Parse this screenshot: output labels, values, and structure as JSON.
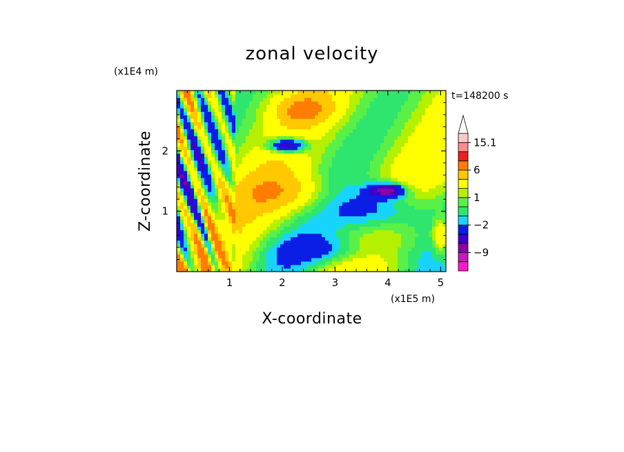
{
  "chart_data": {
    "type": "heatmap",
    "title": "zonal velocity",
    "xlabel": "X-coordinate",
    "ylabel": "Z-coordinate",
    "x_unit": "(x1E5 m)",
    "y_unit": "(x1E4 m)",
    "time_label": "t=148200 s",
    "xlim": [
      0,
      5.1
    ],
    "ylim": [
      0,
      3.0
    ],
    "x_ticks": [
      1,
      2,
      3,
      4,
      5
    ],
    "x_tick_labels": [
      "1",
      "2",
      "3",
      "4",
      "5"
    ],
    "y_ticks": [
      1,
      2
    ],
    "y_tick_labels": [
      "1",
      "2"
    ],
    "colorbar": {
      "levels": [
        -15,
        -12,
        -9,
        -6,
        -4,
        -2,
        -1,
        0,
        1,
        2,
        4,
        6,
        9,
        12,
        15.1
      ],
      "colors": [
        "#ff19c8",
        "#c818be",
        "#8c00a5",
        "#3c00c8",
        "#0a1ee6",
        "#17d4ff",
        "#2ee66e",
        "#5af048",
        "#b4f000",
        "#ffff00",
        "#ffc800",
        "#ff7d00",
        "#f01e1e",
        "#ff8c8c",
        "#ffc8c8"
      ],
      "tick_labels": [
        {
          "value": 15.1,
          "text": "15.1"
        },
        {
          "value": 6,
          "text": "6"
        },
        {
          "value": 1,
          "text": "1"
        },
        {
          "value": -2,
          "text": "−2"
        },
        {
          "value": -9,
          "text": "−9"
        }
      ],
      "extend": "max"
    }
  }
}
